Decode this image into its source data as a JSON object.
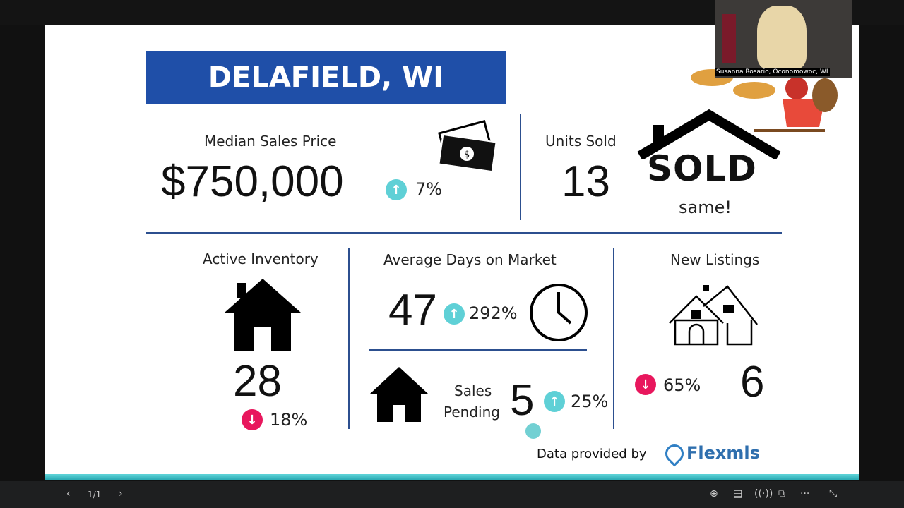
{
  "slide": {
    "title": "DELAFIELD, WI",
    "median": {
      "label": "Median Sales Price",
      "value": "$750,000",
      "change": "7%",
      "direction": "up"
    },
    "units": {
      "label": "Units Sold",
      "value": "13",
      "badge": "SOLD",
      "change": "same!"
    },
    "inventory": {
      "label": "Active Inventory",
      "value": "28",
      "change": "18%",
      "direction": "down"
    },
    "dom": {
      "label": "Average Days on Market",
      "value": "47",
      "change": "292%",
      "direction": "up"
    },
    "pending": {
      "label_line1": "Sales",
      "label_line2": "Pending",
      "value": "5",
      "change": "25%",
      "direction": "up"
    },
    "new_listings": {
      "label": "New Listings",
      "value": "6",
      "change": "65%",
      "direction": "down"
    },
    "footer": {
      "text": "Data provided by",
      "brand": "Flexmls"
    }
  },
  "video": {
    "participant": "Susanna Rosario, Oconomowoc, WI"
  },
  "toolbar": {
    "page": "1/1"
  },
  "colors": {
    "title_bg": "#1f4fa8",
    "up": "#5fd0d6",
    "down": "#e8175d",
    "accent": "#2aa9b3"
  }
}
